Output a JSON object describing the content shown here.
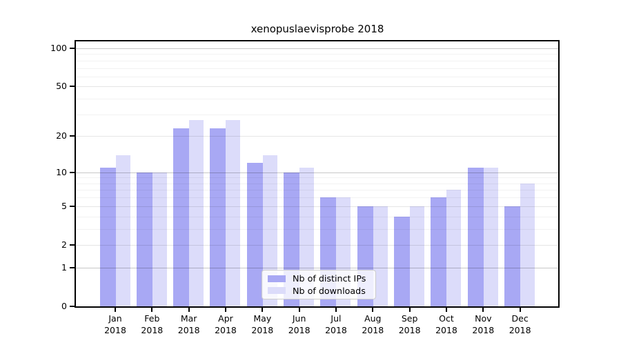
{
  "title": "xenopuslaevisprobe 2018",
  "chart_data": {
    "type": "bar",
    "title": "xenopuslaevisprobe 2018",
    "yscale": "log1p",
    "ylim": [
      0,
      113
    ],
    "grid": "both",
    "legend_position": "lower center",
    "y_ticks": [
      0,
      1,
      2,
      5,
      10,
      20,
      50,
      100
    ],
    "y_minor_gridlines": [
      3,
      4,
      6,
      7,
      8,
      9,
      30,
      40,
      60,
      70,
      80,
      90
    ],
    "y_decade_gridlines": [
      1,
      10,
      100
    ],
    "categories": [
      {
        "month": "Jan",
        "year": "2018"
      },
      {
        "month": "Feb",
        "year": "2018"
      },
      {
        "month": "Mar",
        "year": "2018"
      },
      {
        "month": "Apr",
        "year": "2018"
      },
      {
        "month": "May",
        "year": "2018"
      },
      {
        "month": "Jun",
        "year": "2018"
      },
      {
        "month": "Jul",
        "year": "2018"
      },
      {
        "month": "Aug",
        "year": "2018"
      },
      {
        "month": "Sep",
        "year": "2018"
      },
      {
        "month": "Oct",
        "year": "2018"
      },
      {
        "month": "Nov",
        "year": "2018"
      },
      {
        "month": "Dec",
        "year": "2018"
      }
    ],
    "series": [
      {
        "name": "Nb of distinct IPs",
        "color": "#a8a8f4",
        "values": [
          11,
          10,
          23,
          23,
          12,
          10,
          6,
          5,
          4,
          6,
          11,
          5
        ]
      },
      {
        "name": "Nb of downloads",
        "color": "#dcdcfa",
        "values": [
          14,
          10,
          27,
          27,
          14,
          11,
          6,
          5,
          5,
          7,
          11,
          8
        ]
      }
    ],
    "colors": {
      "spine": "#000000",
      "background": "#ffffff",
      "text": "#000000"
    }
  }
}
